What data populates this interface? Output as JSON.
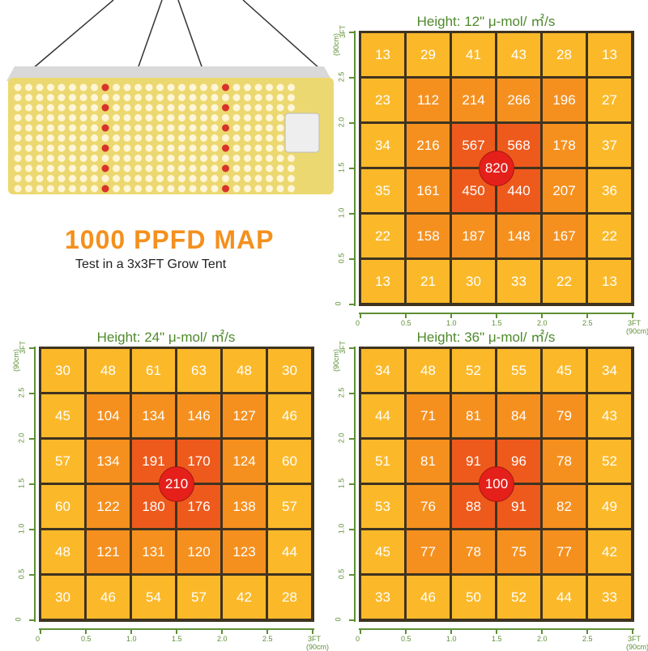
{
  "headline": {
    "title": "1000 PPFD MAP",
    "subtitle": "Test in a 3x3FT Grow Tent"
  },
  "colors": {
    "outer": "#fbb92a",
    "middle": "#f5901f",
    "center": "#ee5a1c",
    "peak": "#e5201b",
    "axis": "#5e8f35"
  },
  "chart_data": [
    {
      "type": "heatmap",
      "title": "Height: 12\" μ-mol/ ㎡/s",
      "x_ticks": [
        "0",
        "0.5",
        "1.0",
        "1.5",
        "2.0",
        "2.5",
        "3FT"
      ],
      "y_ticks": [
        "0",
        "0.5",
        "1.0",
        "1.5",
        "2.0",
        "2.5",
        "3FT"
      ],
      "axis_unit": "(90cm)",
      "peak": "820",
      "rows": [
        [
          "13",
          "29",
          "41",
          "43",
          "28",
          "13"
        ],
        [
          "23",
          "112",
          "214",
          "266",
          "196",
          "27"
        ],
        [
          "34",
          "216",
          "567",
          "568",
          "178",
          "37"
        ],
        [
          "35",
          "161",
          "450",
          "440",
          "207",
          "36"
        ],
        [
          "22",
          "158",
          "187",
          "148",
          "167",
          "22"
        ],
        [
          "13",
          "21",
          "30",
          "33",
          "22",
          "13"
        ]
      ]
    },
    {
      "type": "heatmap",
      "title": "Height: 24\" μ-mol/ ㎡/s",
      "x_ticks": [
        "0",
        "0.5",
        "1.0",
        "1.5",
        "2.0",
        "2.5",
        "3FT"
      ],
      "y_ticks": [
        "0",
        "0.5",
        "1.0",
        "1.5",
        "2.0",
        "2.5",
        "3FT"
      ],
      "axis_unit": "(90cm)",
      "peak": "210",
      "rows": [
        [
          "30",
          "48",
          "61",
          "63",
          "48",
          "30"
        ],
        [
          "45",
          "104",
          "134",
          "146",
          "127",
          "46"
        ],
        [
          "57",
          "134",
          "191",
          "170",
          "124",
          "60"
        ],
        [
          "60",
          "122",
          "180",
          "176",
          "138",
          "57"
        ],
        [
          "48",
          "121",
          "131",
          "120",
          "123",
          "44"
        ],
        [
          "30",
          "46",
          "54",
          "57",
          "42",
          "28"
        ]
      ]
    },
    {
      "type": "heatmap",
      "title": "Height: 36\" μ-mol/ ㎡/s",
      "x_ticks": [
        "0",
        "0.5",
        "1.0",
        "1.5",
        "2.0",
        "2.5",
        "3FT"
      ],
      "y_ticks": [
        "0",
        "0.5",
        "1.0",
        "1.5",
        "2.0",
        "2.5",
        "3FT"
      ],
      "axis_unit": "(90cm)",
      "peak": "100",
      "rows": [
        [
          "34",
          "48",
          "52",
          "55",
          "45",
          "34"
        ],
        [
          "44",
          "71",
          "81",
          "84",
          "79",
          "43"
        ],
        [
          "51",
          "81",
          "91",
          "96",
          "78",
          "52"
        ],
        [
          "53",
          "76",
          "88",
          "91",
          "82",
          "49"
        ],
        [
          "45",
          "77",
          "78",
          "75",
          "77",
          "42"
        ],
        [
          "33",
          "46",
          "50",
          "52",
          "44",
          "33"
        ]
      ]
    }
  ]
}
